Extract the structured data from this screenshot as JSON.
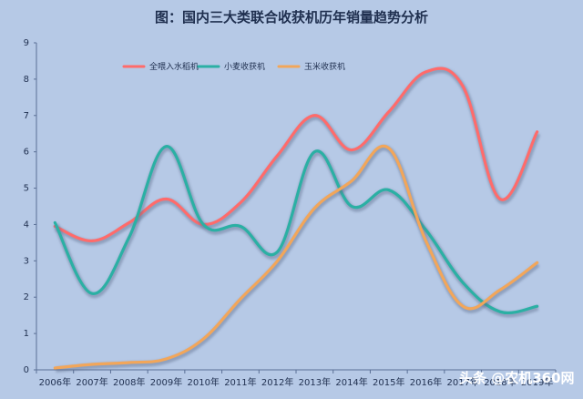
{
  "chart_data": {
    "type": "line",
    "title": "图：国内三大类联合收获机历年销量趋势分析",
    "categories": [
      "2006年",
      "2007年",
      "2008年",
      "2009年",
      "2010年",
      "2011年",
      "2012年",
      "2013年",
      "2014年",
      "2015年",
      "2016年",
      "2017年",
      "2018年",
      "2019年"
    ],
    "ylim": [
      0,
      9
    ],
    "yticks": [
      "0",
      "1",
      "2",
      "3",
      "4",
      "5",
      "6",
      "7",
      "8",
      "9"
    ],
    "grid": false,
    "legend_position": "top-left",
    "series": [
      {
        "name": "全喂入水稻机",
        "color": "#ff6b6b",
        "values": [
          3.95,
          3.55,
          4.05,
          4.7,
          4.0,
          4.6,
          5.9,
          7.0,
          6.05,
          7.1,
          8.2,
          7.8,
          4.7,
          6.55
        ]
      },
      {
        "name": "小麦收获机",
        "color": "#2bb0a4",
        "values": [
          4.05,
          2.1,
          3.65,
          6.15,
          4.0,
          3.95,
          3.25,
          6.0,
          4.5,
          4.95,
          3.85,
          2.4,
          1.6,
          1.75
        ]
      },
      {
        "name": "玉米收获机",
        "color": "#f2a65a",
        "values": [
          0.05,
          0.15,
          0.2,
          0.3,
          0.85,
          1.95,
          3.0,
          4.45,
          5.2,
          6.1,
          3.55,
          1.75,
          2.2,
          2.95
        ]
      }
    ]
  },
  "watermark": "头条 @农机360网"
}
